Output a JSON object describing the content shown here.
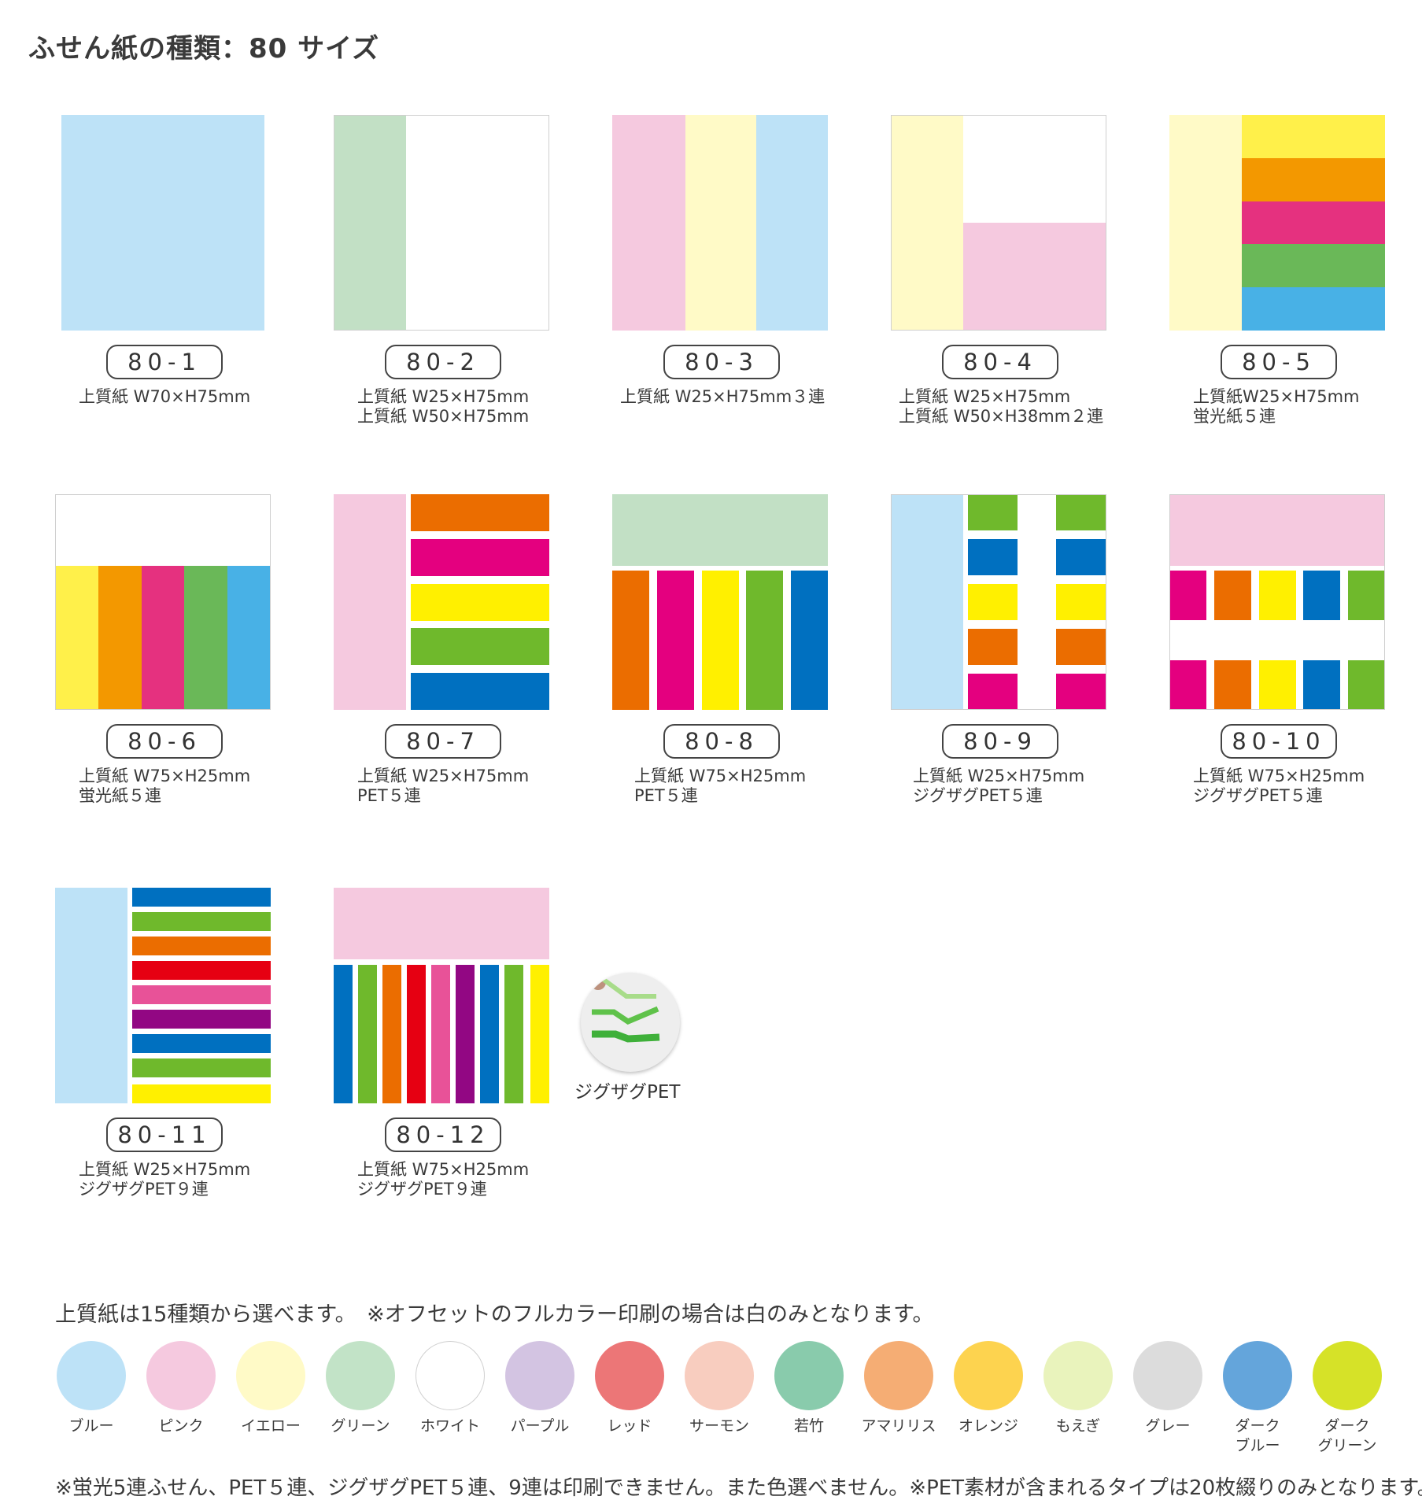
{
  "title": "ふせん紙の種類：80 サイズ",
  "products": [
    {
      "code": "80-1",
      "line1": "上質紙 W70×H75mm",
      "line2": ""
    },
    {
      "code": "80-2",
      "line1": "上質紙 W25×H75mm",
      "line2": "上質紙 W50×H75mm"
    },
    {
      "code": "80-3",
      "line1": "上質紙 W25×H75mm３連",
      "line2": ""
    },
    {
      "code": "80-4",
      "line1": "上質紙 W25×H75mm",
      "line2": "上質紙 W50×H38mm２連"
    },
    {
      "code": "80-5",
      "line1": "上質紙W25×H75mm",
      "line2": "蛍光紙５連"
    },
    {
      "code": "80-6",
      "line1": "上質紙 W75×H25mm",
      "line2": "蛍光紙５連"
    },
    {
      "code": "80-7",
      "line1": "上質紙 W25×H75mm",
      "line2": "PET５連"
    },
    {
      "code": "80-8",
      "line1": "上質紙 W75×H25mm",
      "line2": "PET５連"
    },
    {
      "code": "80-9",
      "line1": "上質紙 W25×H75mm",
      "line2": "ジグザグPET５連"
    },
    {
      "code": "80-10",
      "line1": "上質紙 W75×H25mm",
      "line2": "ジグザグPET５連"
    },
    {
      "code": "80-11",
      "line1": "上質紙 W25×H75mm",
      "line2": "ジグザグPET９連"
    },
    {
      "code": "80-12",
      "line1": "上質紙 W75×H25mm",
      "line2": "ジグザグPET９連"
    }
  ],
  "zigzag_label": "ジグザグPET",
  "paper_note": "上質紙は15種類から選べます。　※オフセットのフルカラー印刷の場合は白のみとなります。",
  "paper_colors": [
    {
      "name": "ブルー",
      "hex": "#bde2f7"
    },
    {
      "name": "ピンク",
      "hex": "#f5c9df"
    },
    {
      "name": "イエロー",
      "hex": "#fffac7"
    },
    {
      "name": "グリーン",
      "hex": "#c2e3c7"
    },
    {
      "name": "ホワイト",
      "hex": "#ffffff"
    },
    {
      "name": "パープル",
      "hex": "#d3c4e2"
    },
    {
      "name": "レッド",
      "hex": "#ec7677"
    },
    {
      "name": "サーモン",
      "hex": "#f8cdbf"
    },
    {
      "name": "若竹",
      "hex": "#89cbac"
    },
    {
      "name": "アマリリス",
      "hex": "#f5ad74"
    },
    {
      "name": "オレンジ",
      "hex": "#fdd34f"
    },
    {
      "name": "もえぎ",
      "hex": "#e9f3bc"
    },
    {
      "name": "グレー",
      "hex": "#dcdcdc"
    },
    {
      "name": "ダーク\nブルー",
      "hex": "#64a5db"
    },
    {
      "name": "ダーク\nグリーン",
      "hex": "#d6e228"
    }
  ],
  "footer_note": "※蛍光5連ふせん、PET５連、ジグザグPET５連、9連は印刷できません。また色選べません。※PET素材が含まれるタイプは20枚綴りのみとなります。"
}
